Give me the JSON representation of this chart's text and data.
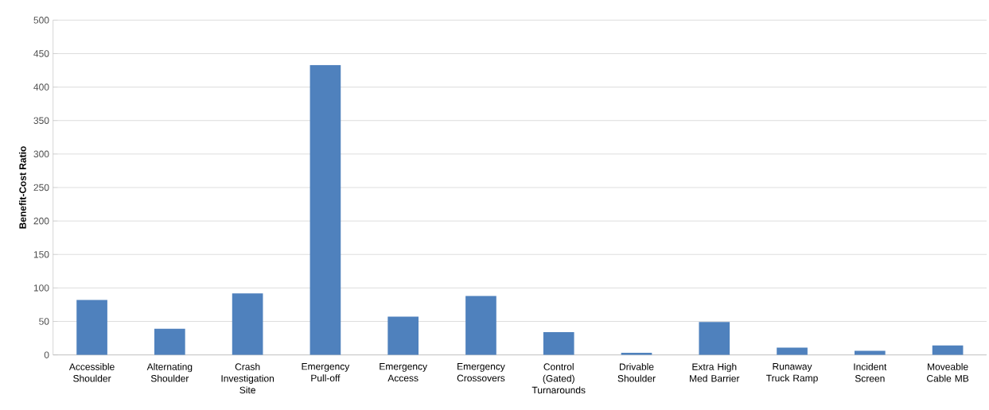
{
  "chart_data": {
    "type": "bar",
    "ylabel": "Benefit-Cost Ratio",
    "categories": [
      "Accessible Shoulder",
      "Alternating Shoulder",
      "Crash Investigation Site",
      "Emergency Pull-off",
      "Emergency Access",
      "Emergency Crossovers",
      "Control (Gated) Turnarounds",
      "Drivable Shoulder",
      "Extra High Med Barrier",
      "Runaway Truck Ramp",
      "Incident Screen",
      "Moveable Cable MB"
    ],
    "values": [
      82,
      39,
      92,
      433,
      57,
      88,
      34,
      3,
      49,
      11,
      6,
      14
    ],
    "color": "#4f81bd",
    "ylim": [
      0,
      500
    ],
    "yticks": [
      0,
      50,
      100,
      150,
      200,
      250,
      300,
      350,
      400,
      450,
      500
    ],
    "grid": "y"
  }
}
